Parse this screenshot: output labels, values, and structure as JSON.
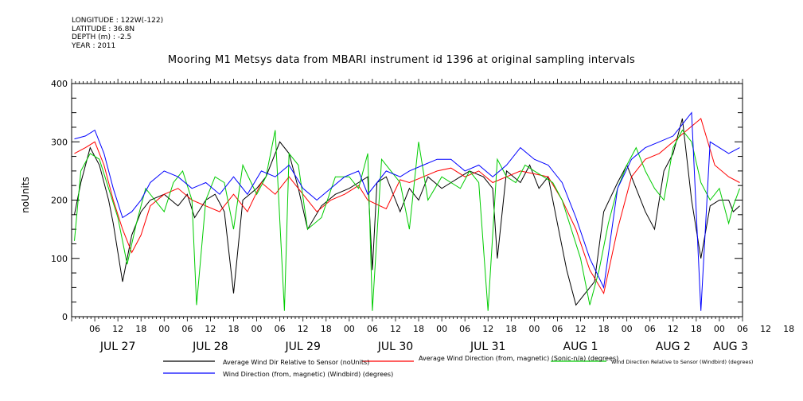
{
  "meta": {
    "longitude": "LONGITUDE : 122W(-122)",
    "latitude": "LATITUDE : 36.8N",
    "depth": "DEPTH (m) : -2.5",
    "year": "YEAR : 2011"
  },
  "chart_data": {
    "type": "line",
    "title": "Mooring M1 Metsys data from MBARI instrument id 1396 at original sampling intervals",
    "ylabel": "noUnits",
    "xlabel": "",
    "ylim": [
      0,
      400
    ],
    "xlim": [
      0,
      7.25
    ],
    "x_units": "days from Jul 27 00:00, 2011",
    "yticks": [
      0,
      100,
      200,
      300,
      400
    ],
    "xticks_hours": [
      "06",
      "12",
      "18",
      "00",
      "06",
      "12",
      "18",
      "00",
      "06",
      "12",
      "18",
      "00",
      "06",
      "12",
      "18",
      "00",
      "06",
      "12",
      "18",
      "00",
      "06",
      "12",
      "18",
      "00",
      "06",
      "12",
      "18",
      "00",
      "06",
      "12",
      "18",
      "00",
      "06",
      "12",
      "18",
      "00"
    ],
    "xticks_days": [
      "JUL 27",
      "JUL 28",
      "JUL 29",
      "JUL 30",
      "JUL 31",
      "AUG 1",
      "AUG 2",
      "AUG 3"
    ],
    "grid": false,
    "legend_position": "bottom",
    "series": [
      {
        "name": "Average Wind Dir Relative to Sensor (noUnits)",
        "color": "#000000",
        "x": [
          0.03,
          0.1,
          0.2,
          0.3,
          0.4,
          0.45,
          0.55,
          0.65,
          0.75,
          0.85,
          1.0,
          1.15,
          1.25,
          1.33,
          1.45,
          1.55,
          1.65,
          1.75,
          1.85,
          2.0,
          2.1,
          2.25,
          2.35,
          2.45,
          2.55,
          2.7,
          2.85,
          3.0,
          3.1,
          3.2,
          3.25,
          3.3,
          3.4,
          3.5,
          3.55,
          3.65,
          3.75,
          3.85,
          4.0,
          4.1,
          4.2,
          4.3,
          4.45,
          4.55,
          4.6,
          4.7,
          4.85,
          4.95,
          5.05,
          5.15,
          5.25,
          5.35,
          5.45,
          5.55,
          5.65,
          5.75,
          5.9,
          6.0,
          6.1,
          6.2,
          6.3,
          6.4,
          6.5,
          6.6,
          6.7,
          6.8,
          6.9,
          7.0,
          7.1,
          7.15,
          7.22
        ],
        "y": [
          175,
          230,
          290,
          260,
          200,
          160,
          60,
          140,
          180,
          200,
          210,
          190,
          210,
          170,
          200,
          210,
          180,
          40,
          200,
          220,
          240,
          300,
          280,
          220,
          150,
          190,
          210,
          220,
          230,
          240,
          80,
          230,
          240,
          200,
          180,
          220,
          200,
          240,
          220,
          230,
          240,
          250,
          240,
          220,
          100,
          250,
          230,
          260,
          220,
          240,
          160,
          80,
          20,
          40,
          60,
          180,
          230,
          260,
          220,
          180,
          150,
          250,
          280,
          340,
          200,
          100,
          190,
          200,
          200,
          180,
          190
        ]
      },
      {
        "name": "Average Wind Direction (from, magnetic) (Sonic-n/a) (degrees)",
        "color": "#ff0000",
        "x": [
          0.03,
          0.15,
          0.25,
          0.35,
          0.45,
          0.55,
          0.65,
          0.75,
          0.85,
          1.0,
          1.15,
          1.3,
          1.45,
          1.6,
          1.75,
          1.9,
          2.05,
          2.2,
          2.35,
          2.5,
          2.65,
          2.8,
          2.95,
          3.1,
          3.2,
          3.4,
          3.55,
          3.65,
          3.8,
          3.95,
          4.1,
          4.25,
          4.4,
          4.55,
          4.7,
          4.85,
          5.0,
          5.15,
          5.3,
          5.45,
          5.6,
          5.75,
          5.9,
          6.05,
          6.2,
          6.35,
          6.5,
          6.65,
          6.8,
          6.95,
          7.1,
          7.22
        ],
        "y": [
          280,
          290,
          300,
          260,
          200,
          150,
          110,
          140,
          190,
          210,
          220,
          200,
          190,
          180,
          210,
          180,
          230,
          210,
          240,
          210,
          180,
          200,
          210,
          225,
          200,
          185,
          235,
          230,
          240,
          250,
          255,
          240,
          250,
          230,
          240,
          250,
          245,
          240,
          200,
          150,
          80,
          40,
          150,
          240,
          270,
          280,
          300,
          320,
          340,
          260,
          240,
          230
        ]
      },
      {
        "name": "Wind Direction Relative to Sensor (Windbird) (degrees)",
        "color": "#00cc00",
        "x": [
          0.03,
          0.1,
          0.2,
          0.3,
          0.4,
          0.5,
          0.6,
          0.7,
          0.8,
          0.9,
          1.0,
          1.1,
          1.2,
          1.3,
          1.35,
          1.45,
          1.55,
          1.65,
          1.75,
          1.85,
          2.0,
          2.1,
          2.2,
          2.3,
          2.35,
          2.45,
          2.55,
          2.7,
          2.85,
          3.0,
          3.1,
          3.2,
          3.25,
          3.35,
          3.45,
          3.55,
          3.65,
          3.75,
          3.85,
          4.0,
          4.1,
          4.2,
          4.3,
          4.4,
          4.5,
          4.6,
          4.7,
          4.8,
          4.9,
          5.0,
          5.1,
          5.2,
          5.3,
          5.4,
          5.5,
          5.6,
          5.7,
          5.8,
          5.9,
          6.0,
          6.1,
          6.2,
          6.3,
          6.4,
          6.5,
          6.6,
          6.7,
          6.8,
          6.9,
          7.0,
          7.1,
          7.15,
          7.22
        ],
        "y": [
          130,
          250,
          280,
          270,
          220,
          170,
          90,
          160,
          220,
          200,
          180,
          230,
          250,
          200,
          20,
          200,
          240,
          230,
          150,
          260,
          210,
          240,
          320,
          10,
          280,
          260,
          150,
          170,
          240,
          240,
          220,
          280,
          10,
          270,
          250,
          230,
          150,
          300,
          200,
          240,
          230,
          220,
          250,
          230,
          10,
          270,
          240,
          230,
          260,
          250,
          240,
          230,
          200,
          150,
          100,
          20,
          80,
          160,
          220,
          260,
          290,
          250,
          220,
          200,
          290,
          320,
          300,
          230,
          200,
          220,
          160,
          190,
          220
        ]
      },
      {
        "name": "Wind Direction (from, magnetic) (Windbird) (degrees)",
        "color": "#0000ff",
        "x": [
          0.03,
          0.15,
          0.25,
          0.35,
          0.45,
          0.55,
          0.65,
          0.75,
          0.85,
          1.0,
          1.15,
          1.3,
          1.45,
          1.6,
          1.75,
          1.9,
          2.05,
          2.2,
          2.35,
          2.5,
          2.65,
          2.8,
          2.95,
          3.1,
          3.2,
          3.4,
          3.55,
          3.65,
          3.8,
          3.95,
          4.1,
          4.25,
          4.4,
          4.55,
          4.7,
          4.85,
          5.0,
          5.15,
          5.3,
          5.45,
          5.6,
          5.75,
          5.9,
          6.05,
          6.2,
          6.35,
          6.5,
          6.6,
          6.7,
          6.8,
          6.9,
          7.0,
          7.1,
          7.22
        ],
        "y": [
          305,
          310,
          320,
          280,
          220,
          170,
          180,
          200,
          230,
          250,
          240,
          220,
          230,
          210,
          240,
          210,
          250,
          240,
          260,
          220,
          200,
          220,
          240,
          250,
          210,
          250,
          240,
          250,
          260,
          270,
          270,
          250,
          260,
          240,
          260,
          290,
          270,
          260,
          230,
          170,
          100,
          50,
          220,
          270,
          290,
          300,
          310,
          330,
          350,
          10,
          300,
          290,
          280,
          290
        ]
      }
    ]
  }
}
